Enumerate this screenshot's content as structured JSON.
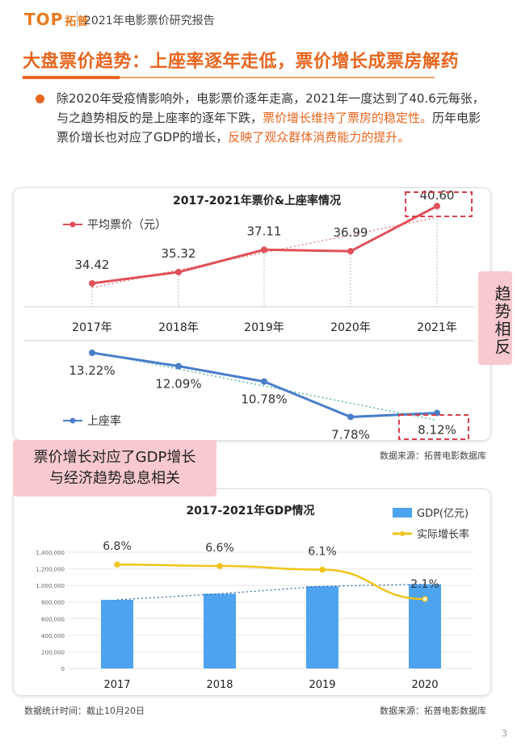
{
  "header": {
    "logo_text": "TOP",
    "logo_zh": "拓普",
    "report_title": "2021年电影票价研究报告"
  },
  "main": {
    "heading": "大盘票价趋势：上座率逐年走低，票价增长成票房解药",
    "paragraph_parts": [
      {
        "text": "除2020年受疫情影响外，电影票价逐年走高，2021年一度达到了40.6元每张，与之趋势相反的是上座率的逐年下跌，",
        "highlight": false
      },
      {
        "text": "票价增长维持了票房的稳定性。",
        "highlight": true
      },
      {
        "text": "历年电影票价增长也对应了GDP的增长，",
        "highlight": false
      },
      {
        "text": "反映了观众群体消费能力的提升。",
        "highlight": true
      }
    ],
    "side_tag": "趋势相反",
    "pink_tag_line1": "票价增长对应了GDP增长",
    "pink_tag_line2": "与经济趋势息息相关",
    "source1": "数据来源：拓普电影数据库",
    "source2": "数据来源：拓普电影数据库",
    "stat_time": "数据统计时间：截止10月20日",
    "page_number": "3"
  },
  "colors": {
    "accent": "#e8651e",
    "price_line": "#e0505a",
    "occupancy_line": "#4a7ec9",
    "gdp_bar": "#4da3ee",
    "growth_line": "#f0c419",
    "pink_tag": "#f8c9cf"
  },
  "chart_data": [
    {
      "type": "line",
      "title": "2017-2021年票价&上座率情况",
      "categories": [
        "2017年",
        "2018年",
        "2019年",
        "2020年",
        "2021年"
      ],
      "series": [
        {
          "name": "平均票价（元）",
          "values": [
            34.42,
            35.32,
            37.11,
            36.99,
            40.6
          ],
          "labels": [
            "34.42",
            "35.32",
            "37.11",
            "36.99",
            "40.60"
          ]
        },
        {
          "name": "上座率",
          "values": [
            13.22,
            12.09,
            10.78,
            7.78,
            8.12
          ],
          "labels": [
            "13.22%",
            "12.09%",
            "10.78%",
            "7.78%",
            "8.12%"
          ]
        }
      ],
      "trendlines": true,
      "highlight": [
        "2021年 平均票价",
        "2021年 上座率"
      ]
    },
    {
      "type": "bar",
      "title": "2017-2021年GDP情况",
      "categories": [
        "2017",
        "2018",
        "2019",
        "2020"
      ],
      "series": [
        {
          "name": "GDP(亿元)",
          "type": "bar",
          "values": [
            827000,
            900000,
            990000,
            1015000
          ]
        },
        {
          "name": "实际增长率",
          "type": "line",
          "values": [
            6.8,
            6.6,
            6.1,
            2.1
          ],
          "labels": [
            "6.8%",
            "6.6%",
            "6.1%",
            "2.1%"
          ]
        }
      ],
      "y_ticks": [
        "0",
        "200,000",
        "400,000",
        "600,000",
        "800,000",
        "1,000,000",
        "1,200,000",
        "1,400,000"
      ],
      "ylim": [
        0,
        1400000
      ],
      "grid": true,
      "legend": "top-right"
    }
  ]
}
